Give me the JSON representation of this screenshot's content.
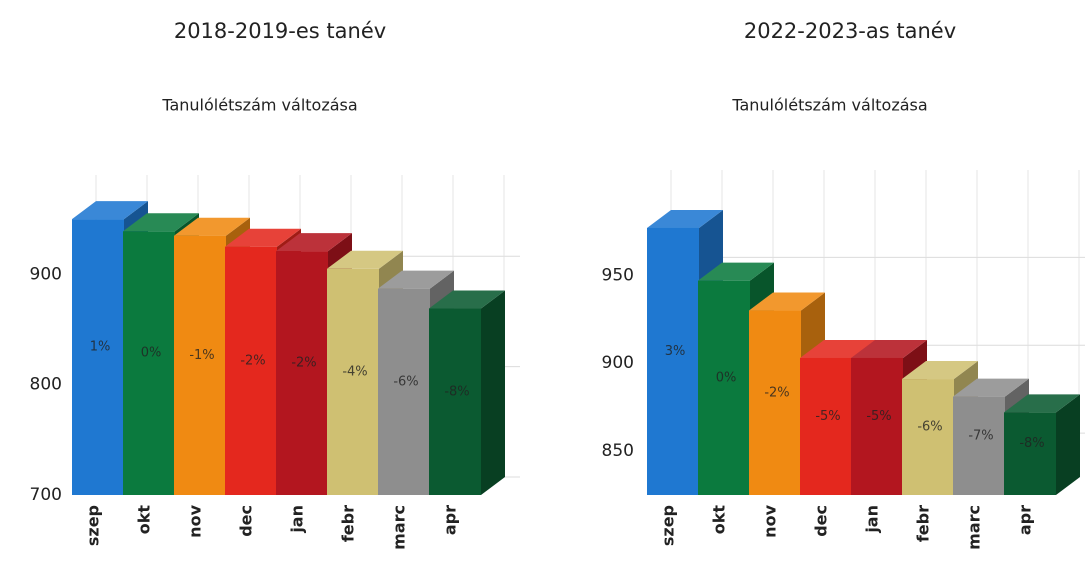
{
  "chart_data": [
    {
      "type": "bar3d",
      "title": "2018-2019-es tanév",
      "subtitle": "Tanulólétszám változása",
      "categories": [
        "szep",
        "okt",
        "nov",
        "dec",
        "jan",
        "febr",
        "marc",
        "apr"
      ],
      "values": [
        950,
        939,
        935,
        925,
        921,
        905,
        887,
        869
      ],
      "bar_labels": [
        "1%",
        "0%",
        "-1%",
        "-2%",
        "-2%",
        "-4%",
        "-6%",
        "-8%"
      ],
      "colors": [
        "#1f78d1",
        "#0b7a3e",
        "#f08a12",
        "#e4281e",
        "#b3161f",
        "#cfc072",
        "#8e8e8e",
        "#0b5a31"
      ],
      "ylim": [
        700,
        990
      ],
      "yticks": [
        700,
        800,
        900
      ],
      "grid": true
    },
    {
      "type": "bar3d",
      "title": "2022-2023-as tanév",
      "subtitle": "Tanulólétszám változása",
      "categories": [
        "szep",
        "okt",
        "nov",
        "dec",
        "jan",
        "febr",
        "marc",
        "apr"
      ],
      "values": [
        977,
        947,
        930,
        903,
        903,
        891,
        881,
        872
      ],
      "bar_labels": [
        "3%",
        "0%",
        "-2%",
        "-5%",
        "-5%",
        "-6%",
        "-7%",
        "-8%"
      ],
      "colors": [
        "#1f78d1",
        "#0b7a3e",
        "#f08a12",
        "#e4281e",
        "#b3161f",
        "#cfc072",
        "#8e8e8e",
        "#0b5a31"
      ],
      "ylim": [
        825,
        1010
      ],
      "yticks": [
        850,
        900,
        950
      ],
      "grid": true
    }
  ]
}
